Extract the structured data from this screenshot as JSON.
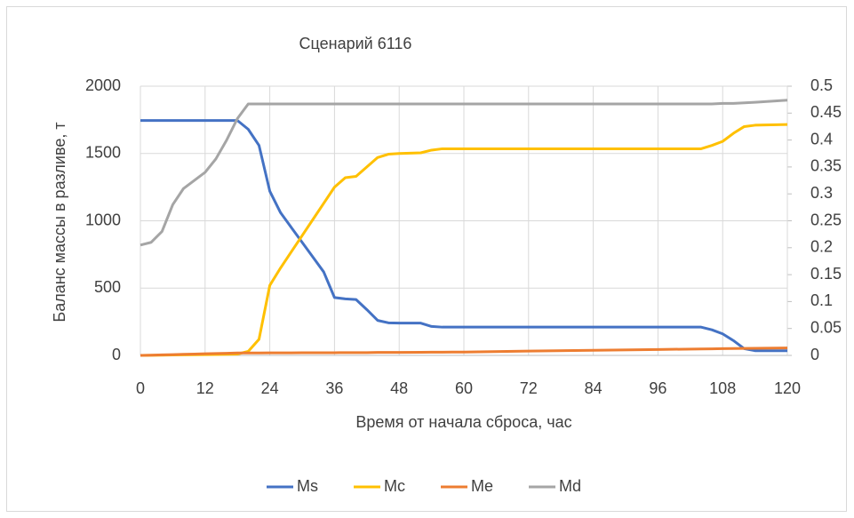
{
  "chart_data": {
    "type": "line",
    "title": "Сценарий 6116",
    "x_label": "Время от начала сброса, час",
    "y_label": "Баланс массы в разливе, т",
    "x": [
      0,
      2,
      4,
      6,
      8,
      10,
      12,
      14,
      16,
      18,
      20,
      22,
      24,
      26,
      28,
      30,
      32,
      34,
      36,
      38,
      40,
      42,
      44,
      46,
      48,
      52,
      54,
      56,
      60,
      72,
      84,
      96,
      104,
      106,
      108,
      110,
      112,
      114,
      120
    ],
    "series": [
      {
        "name": "Ms",
        "color": "#4472c4",
        "values": [
          1745,
          1745,
          1745,
          1745,
          1745,
          1745,
          1745,
          1745,
          1745,
          1745,
          1680,
          1560,
          1220,
          1060,
          950,
          840,
          730,
          620,
          430,
          420,
          415,
          340,
          260,
          242,
          240,
          240,
          215,
          210,
          210,
          210,
          210,
          210,
          210,
          190,
          160,
          110,
          50,
          35,
          35
        ]
      },
      {
        "name": "Mc",
        "color": "#ffc000",
        "values": [
          0,
          1,
          2,
          3,
          4,
          5,
          6,
          7,
          8,
          10,
          30,
          120,
          520,
          650,
          770,
          890,
          1010,
          1130,
          1250,
          1320,
          1330,
          1400,
          1470,
          1495,
          1500,
          1505,
          1525,
          1535,
          1535,
          1535,
          1535,
          1535,
          1535,
          1560,
          1590,
          1650,
          1700,
          1710,
          1715
        ]
      },
      {
        "name": "Me",
        "color": "#ed7d31",
        "values": [
          0,
          2,
          4,
          6,
          8,
          10,
          12,
          14,
          16,
          18,
          18,
          18,
          19,
          19,
          19,
          20,
          20,
          20,
          20,
          21,
          21,
          21,
          22,
          22,
          22,
          23,
          24,
          24,
          25,
          32,
          38,
          44,
          48,
          49,
          50,
          51,
          52,
          53,
          55
        ]
      },
      {
        "name": "Md",
        "color": "#a5a5a5",
        "axis": "y2",
        "values": [
          0.205,
          0.21,
          0.23,
          0.28,
          0.31,
          0.325,
          0.34,
          0.365,
          0.4,
          0.44,
          0.467,
          0.467,
          0.467,
          0.467,
          0.467,
          0.467,
          0.467,
          0.467,
          0.467,
          0.467,
          0.467,
          0.467,
          0.467,
          0.467,
          0.467,
          0.467,
          0.467,
          0.467,
          0.467,
          0.467,
          0.467,
          0.467,
          0.467,
          0.467,
          0.468,
          0.468,
          0.469,
          0.47,
          0.474
        ]
      }
    ],
    "xlim": [
      0,
      120
    ],
    "xticks": [
      0,
      12,
      24,
      36,
      48,
      60,
      72,
      84,
      96,
      108,
      120
    ],
    "ylim": [
      0,
      2000
    ],
    "yticks": [
      0,
      500,
      1000,
      1500,
      2000
    ],
    "y2lim": [
      0,
      0.5
    ],
    "y2ticks": [
      0,
      0.05,
      0.1,
      0.15,
      0.2,
      0.25,
      0.3,
      0.35,
      0.4,
      0.45,
      0.5
    ],
    "grid": true,
    "legend": "bottom"
  }
}
